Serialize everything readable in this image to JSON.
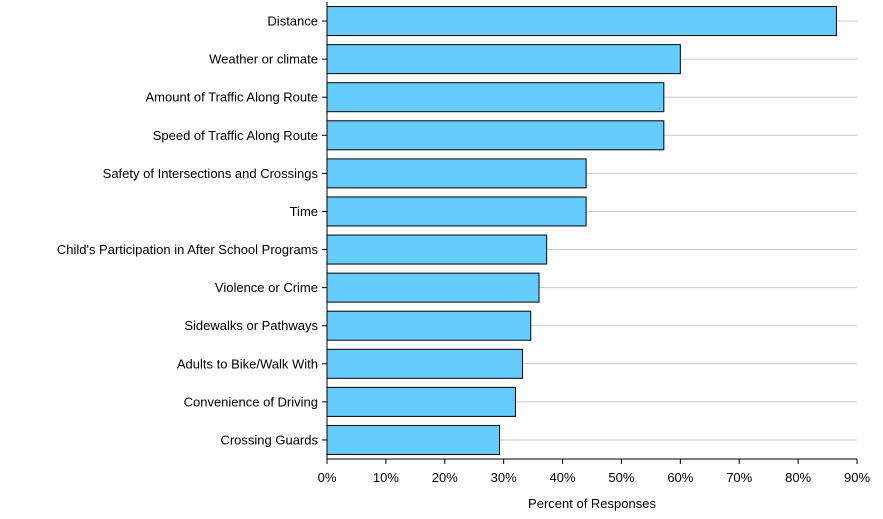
{
  "chart_data": {
    "type": "bar",
    "orientation": "horizontal",
    "categories": [
      "Distance",
      "Weather or climate",
      "Amount of Traffic Along Route",
      "Speed of Traffic Along Route",
      "Safety of Intersections and Crossings",
      "Time",
      "Child's Participation in After School Programs",
      "Violence or Crime",
      "Sidewalks or Pathways",
      "Adults to Bike/Walk With",
      "Convenience of Driving",
      "Crossing Guards"
    ],
    "values": [
      86.5,
      60,
      57.2,
      57.2,
      44,
      44,
      37.3,
      36,
      34.6,
      33.2,
      32,
      29.3
    ],
    "xlabel": "Percent of Responses",
    "ylabel": "",
    "xlim": [
      0,
      90
    ],
    "x_ticks": [
      "0%",
      "10%",
      "20%",
      "30%",
      "40%",
      "50%",
      "60%",
      "70%",
      "80%",
      "90%"
    ],
    "grid": "vertical-right-of-bars",
    "colors": {
      "bar_fill": "#66CCFF",
      "bar_stroke": "#000000",
      "grid": "#C8C8C8",
      "axis": "#000000"
    }
  }
}
